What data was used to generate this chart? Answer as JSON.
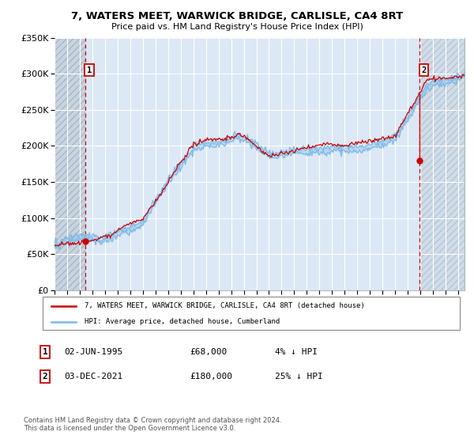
{
  "title": "7, WATERS MEET, WARWICK BRIDGE, CARLISLE, CA4 8RT",
  "subtitle": "Price paid vs. HM Land Registry's House Price Index (HPI)",
  "legend_line1": "7, WATERS MEET, WARWICK BRIDGE, CARLISLE, CA4 8RT (detached house)",
  "legend_line2": "HPI: Average price, detached house, Cumberland",
  "annotation1_date": "02-JUN-1995",
  "annotation1_price": "£68,000",
  "annotation1_hpi": "4% ↓ HPI",
  "annotation2_date": "03-DEC-2021",
  "annotation2_price": "£180,000",
  "annotation2_hpi": "25% ↓ HPI",
  "footer": "Contains HM Land Registry data © Crown copyright and database right 2024.\nThis data is licensed under the Open Government Licence v3.0.",
  "sale1_year": 1995.42,
  "sale1_price": 68000,
  "sale2_year": 2021.92,
  "sale2_price": 180000,
  "hpi_color": "#7ab8e8",
  "price_color": "#cc0000",
  "plot_bg": "#dce8f5",
  "hatch_bg": "#c8d4e0",
  "ylim": [
    0,
    350000
  ],
  "xlim_start": 1993.0,
  "xlim_end": 2025.5,
  "yticks": [
    0,
    50000,
    100000,
    150000,
    200000,
    250000,
    300000,
    350000
  ]
}
